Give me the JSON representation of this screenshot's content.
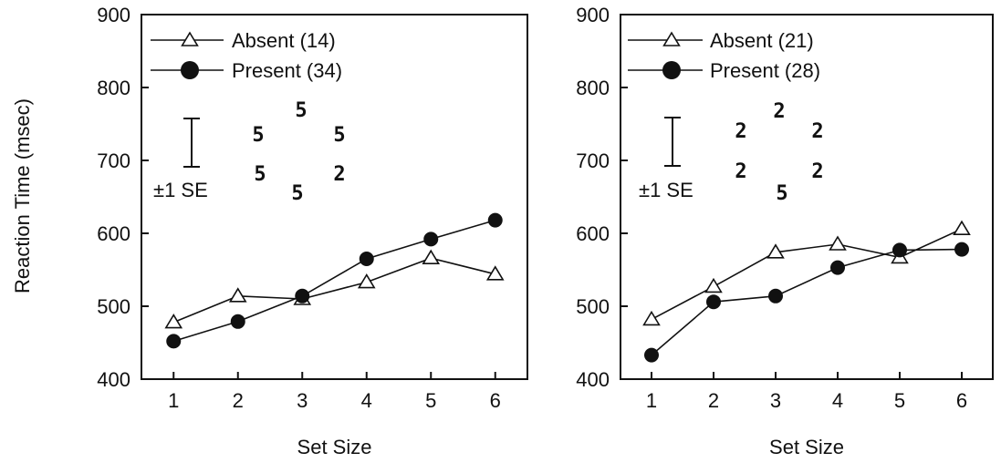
{
  "figure": {
    "ylabel": "Reaction Time (msec)"
  },
  "chart_data": [
    {
      "type": "line",
      "xlabel": "Set Size",
      "ylabel": "Reaction Time (msec)",
      "x": [
        1,
        2,
        3,
        4,
        5,
        6
      ],
      "xlim": [
        0.5,
        6.5
      ],
      "ylim": [
        400,
        900
      ],
      "yticks": [
        400,
        500,
        600,
        700,
        800,
        900
      ],
      "legend_position": "top-left",
      "grid": false,
      "series": [
        {
          "name": "Absent (14)",
          "marker": "open-triangle",
          "values": [
            478,
            514,
            510,
            533,
            566,
            544
          ]
        },
        {
          "name": "Present (34)",
          "marker": "filled-circle",
          "values": [
            452,
            479,
            514,
            565,
            592,
            618
          ]
        }
      ],
      "error_bar_label": "±1 SE",
      "stimulus_glyphs": [
        "5",
        "5",
        "5",
        "5",
        "2",
        "5"
      ]
    },
    {
      "type": "line",
      "xlabel": "Set Size",
      "ylabel": "Reaction Time (msec)",
      "x": [
        1,
        2,
        3,
        4,
        5,
        6
      ],
      "xlim": [
        0.5,
        6.5
      ],
      "ylim": [
        400,
        900
      ],
      "yticks": [
        400,
        500,
        600,
        700,
        800,
        900
      ],
      "legend_position": "top-left",
      "grid": false,
      "series": [
        {
          "name": "Absent (21)",
          "marker": "open-triangle",
          "values": [
            482,
            527,
            574,
            585,
            567,
            606
          ]
        },
        {
          "name": "Present (28)",
          "marker": "filled-circle",
          "values": [
            433,
            506,
            514,
            553,
            577,
            578
          ]
        }
      ],
      "error_bar_label": "±1 SE",
      "stimulus_glyphs": [
        "2",
        "2",
        "2",
        "2",
        "2",
        "5"
      ]
    }
  ]
}
